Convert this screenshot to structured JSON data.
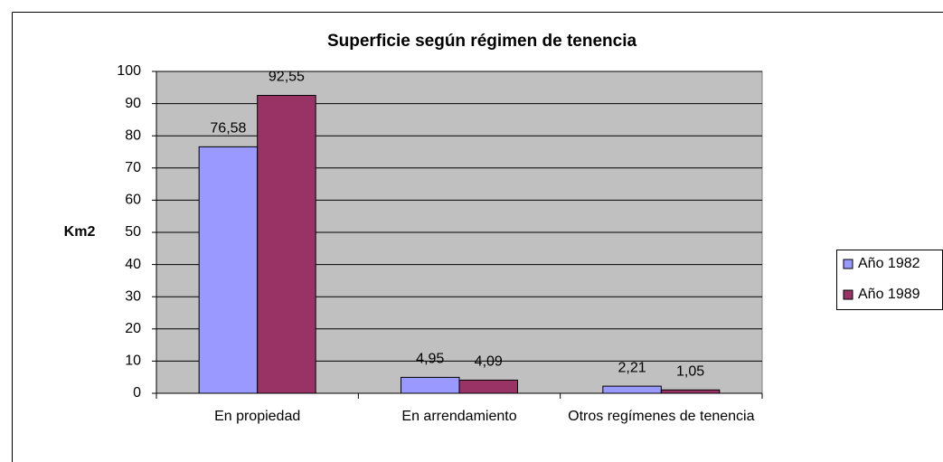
{
  "chart_data": {
    "type": "bar",
    "title": "Superficie según régimen de tenencia",
    "y_label": "Km2",
    "categories": [
      "En propiedad",
      "En arrendamiento",
      "Otros regímenes de tenencia"
    ],
    "series": [
      {
        "name": "Año 1982",
        "color": "#9999ff",
        "values": [
          76.58,
          4.95,
          2.21
        ],
        "value_labels": [
          "76,58",
          "4,95",
          "2,21"
        ]
      },
      {
        "name": "Año 1989",
        "color": "#993366",
        "values": [
          92.55,
          4.09,
          1.05
        ],
        "value_labels": [
          "92,55",
          "4,09",
          "1,05"
        ]
      }
    ],
    "ylim": [
      0,
      100
    ],
    "yticks": [
      0,
      10,
      20,
      30,
      40,
      50,
      60,
      70,
      80,
      90,
      100
    ],
    "grid": true,
    "legend": "right"
  }
}
